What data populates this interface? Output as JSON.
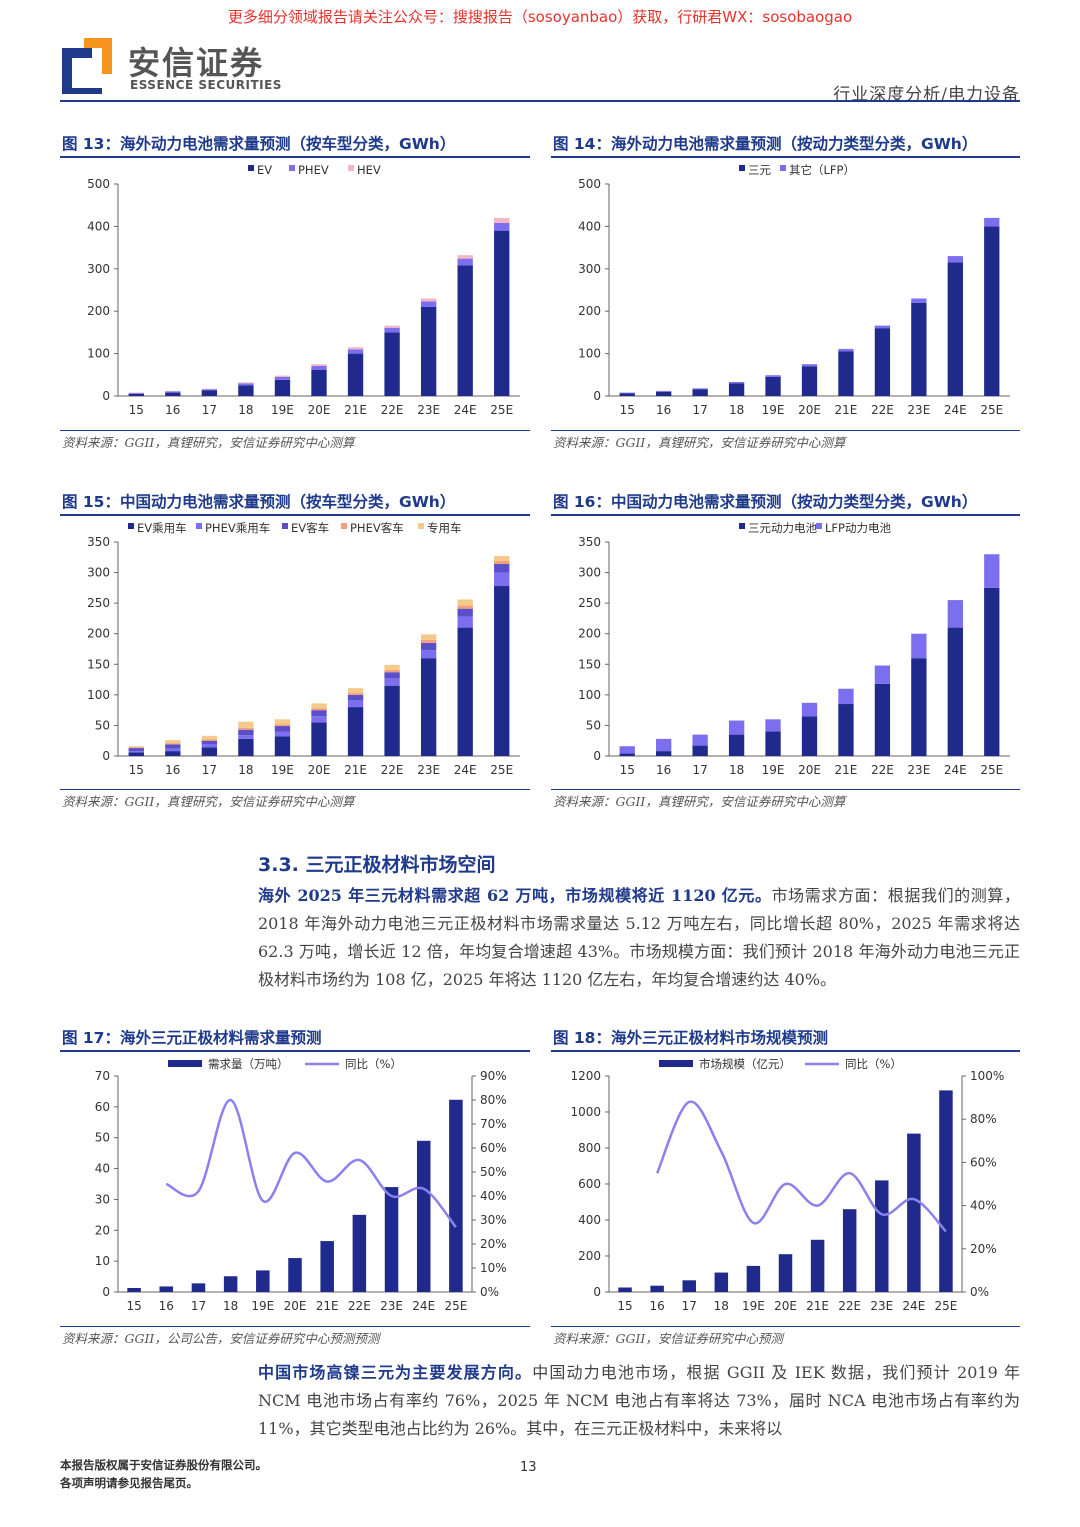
{
  "banner": "更多细分领域报告请关注公众号：搜搜报告（sosoyanbao）获取，行研君WX：sosobaogao",
  "logo": {
    "cn": "安信证券",
    "en": "ESSENCE SECURITIES"
  },
  "header_right": "行业深度分析/电力设备",
  "colors": {
    "navy": "#1f2a8c",
    "purple": "#7b6ff0",
    "pink": "#f4b6c2",
    "violet": "#5a4fc9",
    "beige": "#f4c98a",
    "orange": "#f2a07c",
    "line": "#8a80f0",
    "accent": "#1f3a8a"
  },
  "section": {
    "title": "3.3. 三元正极材料市场空间"
  },
  "para1": {
    "bold": "海外 2025 年三元材料需求超 62 万吨，市场规模将近 1120 亿元。",
    "text": "市场需求方面：根据我们的测算，2018 年海外动力电池三元正极材料市场需求量达 5.12 万吨左右，同比增长超 80%，2025 年需求将达 62.3 万吨，增长近 12 倍，年均复合增速超 43%。市场规模方面：我们预计 2018 年海外动力电池三元正极材料市场约为 108 亿，2025 年将达 1120 亿左右，年均复合增速约达 40%。"
  },
  "para2": {
    "bold": "中国市场高镍三元为主要发展方向。",
    "text": "中国动力电池市场，根据 GGII 及 IEK 数据，我们预计 2019 年 NCM 电池市场占有率约 76%，2025 年 NCM 电池占有率将达 73%，届时 NCA 电池市场占有率约为 11%，其它类型电池占比约为 26%。其中，在三元正极材料中，未来将以"
  },
  "footer": {
    "line1": "本报告版权属于安信证券股份有限公司。",
    "line2": "各项声明请参见报告尾页。",
    "page": "13"
  },
  "chart_data": [
    {
      "id": "fig13",
      "type": "bar",
      "title": "图 13：海外动力电池需求量预测（按车型分类，GWh）",
      "source": "资料来源：GGII，真锂研究，安信证券研究中心测算",
      "categories": [
        "15",
        "16",
        "17",
        "18",
        "19E",
        "20E",
        "21E",
        "22E",
        "23E",
        "24E",
        "25E"
      ],
      "ylim": [
        0,
        500
      ],
      "yticks": [
        0,
        100,
        200,
        300,
        400,
        500
      ],
      "series": [
        {
          "name": "EV",
          "color": "#1f2a8c",
          "values": [
            5,
            8,
            13,
            25,
            38,
            62,
            100,
            150,
            210,
            308,
            390
          ]
        },
        {
          "name": "PHEV",
          "color": "#7b6ff0",
          "values": [
            2,
            3,
            3,
            5,
            7,
            9,
            10,
            11,
            13,
            16,
            18
          ]
        },
        {
          "name": "HEV",
          "color": "#f4b6c2",
          "values": [
            1,
            1,
            1,
            2,
            3,
            4,
            5,
            5,
            7,
            8,
            12
          ]
        }
      ]
    },
    {
      "id": "fig14",
      "type": "bar",
      "title": "图 14：海外动力电池需求量预测（按动力类型分类，GWh）",
      "source": "资料来源：GGII，真锂研究，安信证券研究中心测算",
      "categories": [
        "15",
        "16",
        "17",
        "18",
        "19E",
        "20E",
        "21E",
        "22E",
        "23E",
        "24E",
        "25E"
      ],
      "ylim": [
        0,
        500
      ],
      "yticks": [
        0,
        100,
        200,
        300,
        400,
        500
      ],
      "series": [
        {
          "name": "三元",
          "color": "#1f2a8c",
          "values": [
            6,
            10,
            16,
            30,
            45,
            70,
            105,
            160,
            220,
            315,
            400
          ]
        },
        {
          "name": "其它（LFP）",
          "color": "#7b6ff0",
          "values": [
            2,
            2,
            2,
            3,
            4,
            5,
            6,
            6,
            10,
            15,
            20
          ]
        }
      ]
    },
    {
      "id": "fig15",
      "type": "bar",
      "title": "图 15：中国动力电池需求量预测（按车型分类，GWh）",
      "source": "资料来源：GGII，真锂研究，安信证券研究中心测算",
      "categories": [
        "15",
        "16",
        "17",
        "18",
        "19E",
        "20E",
        "21E",
        "22E",
        "23E",
        "24E",
        "25E"
      ],
      "ylim": [
        0,
        350
      ],
      "yticks": [
        0,
        50,
        100,
        150,
        200,
        250,
        300,
        350
      ],
      "series": [
        {
          "name": "EV乘用车",
          "color": "#1f2a8c",
          "values": [
            6,
            8,
            14,
            28,
            32,
            55,
            80,
            115,
            160,
            210,
            278
          ]
        },
        {
          "name": "PHEV乘用车",
          "color": "#7b6ff0",
          "values": [
            2,
            4,
            5,
            6,
            8,
            10,
            11,
            12,
            13,
            18,
            22
          ]
        },
        {
          "name": "EV客车",
          "color": "#5a4fc9",
          "values": [
            5,
            7,
            6,
            9,
            9,
            10,
            9,
            10,
            12,
            13,
            14
          ]
        },
        {
          "name": "PHEV客车",
          "color": "#f2a07c",
          "values": [
            1,
            2,
            2,
            3,
            3,
            3,
            3,
            4,
            5,
            5,
            5
          ]
        },
        {
          "name": "专用车",
          "color": "#f4c98a",
          "values": [
            2,
            5,
            6,
            10,
            8,
            8,
            8,
            8,
            9,
            10,
            8
          ]
        }
      ]
    },
    {
      "id": "fig16",
      "type": "bar",
      "title": "图 16：中国动力电池需求量预测（按动力类型分类，GWh）",
      "source": "资料来源：GGII，真锂研究，安信证券研究中心测算",
      "categories": [
        "15",
        "16",
        "17",
        "18",
        "19E",
        "20E",
        "21E",
        "22E",
        "23E",
        "24E",
        "25E"
      ],
      "ylim": [
        0,
        350
      ],
      "yticks": [
        0,
        50,
        100,
        150,
        200,
        250,
        300,
        350
      ],
      "series": [
        {
          "name": "三元动力电池",
          "color": "#1f2a8c",
          "values": [
            4,
            8,
            17,
            35,
            40,
            65,
            85,
            118,
            160,
            210,
            275
          ]
        },
        {
          "name": "LFP动力电池",
          "color": "#7b6ff0",
          "values": [
            12,
            20,
            18,
            23,
            20,
            22,
            25,
            30,
            40,
            45,
            55
          ]
        }
      ]
    },
    {
      "id": "fig17",
      "type": "bar+line",
      "title": "图 17：海外三元正极材料需求量预测",
      "source": "资料来源：GGII，公司公告，安信证券研究中心预测预测",
      "categories": [
        "15",
        "16",
        "17",
        "18",
        "19E",
        "20E",
        "21E",
        "22E",
        "23E",
        "24E",
        "25E"
      ],
      "ylim": [
        0,
        70
      ],
      "yticks": [
        0,
        10,
        20,
        30,
        40,
        50,
        60,
        70
      ],
      "y2lim": [
        0,
        90
      ],
      "y2ticks": [
        "0%",
        "10%",
        "20%",
        "30%",
        "40%",
        "50%",
        "60%",
        "70%",
        "80%",
        "90%"
      ],
      "bar": {
        "name": "需求量（万吨）",
        "color": "#1f2a8c",
        "values": [
          1.3,
          1.8,
          2.8,
          5.1,
          7,
          11,
          16.5,
          25,
          34,
          49,
          62.3
        ]
      },
      "line": {
        "name": "同比（%）",
        "color": "#8a80f0",
        "values": [
          null,
          45,
          42,
          80,
          38,
          58,
          46,
          55,
          40,
          43,
          27
        ]
      }
    },
    {
      "id": "fig18",
      "type": "bar+line",
      "title": "图 18：海外三元正极材料市场规模预测",
      "source": "资料来源：GGII，安信证券研究中心预测",
      "categories": [
        "15",
        "16",
        "17",
        "18",
        "19E",
        "20E",
        "21E",
        "22E",
        "23E",
        "24E",
        "25E"
      ],
      "ylim": [
        0,
        1200
      ],
      "yticks": [
        0,
        200,
        400,
        600,
        800,
        1000,
        1200
      ],
      "y2lim": [
        0,
        100
      ],
      "y2ticks": [
        "0%",
        "20%",
        "40%",
        "60%",
        "80%",
        "100%"
      ],
      "bar": {
        "name": "市场规模（亿元）",
        "color": "#1f2a8c",
        "values": [
          25,
          35,
          65,
          108,
          145,
          210,
          290,
          460,
          620,
          880,
          1120
        ]
      },
      "line": {
        "name": "同比（%）",
        "color": "#8a80f0",
        "values": [
          null,
          55,
          88,
          65,
          32,
          50,
          40,
          55,
          36,
          43,
          28
        ]
      }
    }
  ]
}
